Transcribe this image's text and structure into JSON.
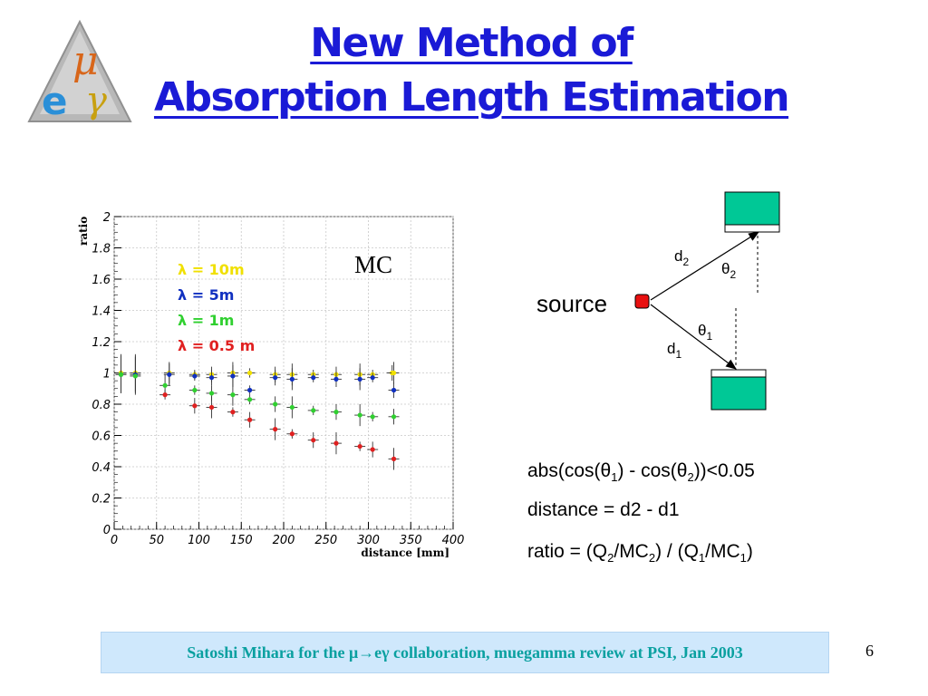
{
  "title": {
    "line1": "New Method of",
    "line2": "Absorption Length Estimation"
  },
  "logo": {
    "icon": "mu-e-gamma-triangle-logo",
    "symbols": [
      "μ",
      "e",
      "γ"
    ]
  },
  "chart_data": {
    "type": "scatter",
    "xlabel": "distance [mm]",
    "ylabel": "ratio",
    "xlim": [
      0,
      400
    ],
    "ylim": [
      0,
      2
    ],
    "xticks": [
      "0",
      "50",
      "100",
      "150",
      "200",
      "250",
      "300",
      "350",
      "400"
    ],
    "yticks": [
      "0",
      "0.2",
      "0.4",
      "0.6",
      "0.8",
      "1",
      "1.2",
      "1.4",
      "1.6",
      "1.8",
      "2"
    ],
    "grid": true,
    "annotation": "MC",
    "legend_position": "top-left",
    "series": [
      {
        "name": "λ = 10m",
        "color": "#f0e000",
        "x": [
          8,
          25,
          65,
          95,
          115,
          140,
          160,
          190,
          210,
          235,
          262,
          290,
          305,
          328,
          330
        ],
        "y": [
          1.0,
          1.0,
          1.0,
          0.99,
          0.99,
          1.0,
          1.0,
          0.99,
          0.99,
          0.99,
          0.99,
          0.99,
          0.99,
          1.0,
          1.0
        ]
      },
      {
        "name": "λ = 5m",
        "color": "#1030c0",
        "x": [
          8,
          25,
          65,
          95,
          115,
          140,
          160,
          190,
          210,
          235,
          262,
          290,
          305,
          330
        ],
        "y": [
          0.99,
          0.99,
          0.99,
          0.98,
          0.97,
          0.98,
          0.89,
          0.97,
          0.96,
          0.97,
          0.96,
          0.96,
          0.97,
          0.89
        ]
      },
      {
        "name": "λ = 1m",
        "color": "#30d030",
        "x": [
          8,
          25,
          60,
          95,
          115,
          140,
          160,
          190,
          210,
          235,
          262,
          290,
          305,
          330
        ],
        "y": [
          0.99,
          0.98,
          0.92,
          0.89,
          0.87,
          0.86,
          0.83,
          0.8,
          0.78,
          0.76,
          0.75,
          0.73,
          0.72,
          0.72
        ]
      },
      {
        "name": "λ = 0.5 m",
        "color": "#e02020",
        "x": [
          60,
          95,
          115,
          140,
          160,
          190,
          210,
          235,
          262,
          290,
          305,
          330
        ],
        "y": [
          0.86,
          0.79,
          0.78,
          0.75,
          0.7,
          0.64,
          0.61,
          0.57,
          0.55,
          0.53,
          0.51,
          0.45
        ]
      }
    ]
  },
  "diagram": {
    "source_label": "source",
    "d2": "d",
    "d2_sub": "2",
    "theta2": "θ",
    "theta2_sub": "2",
    "theta1": "θ",
    "theta1_sub": "1",
    "d1": "d",
    "d1_sub": "1",
    "detector_color": "#00c896",
    "source_color": "#e81010"
  },
  "formulas": {
    "f1_a": "abs(cos(θ",
    "f1_s1": "1",
    "f1_b": ") - cos(θ",
    "f1_s2": "2",
    "f1_c": "))<0.05",
    "f2": "distance = d2 - d1",
    "f3_a": "ratio = (Q",
    "f3_s1": "2",
    "f3_b": "/MC",
    "f3_s2": "2",
    "f3_c": ") / (Q",
    "f3_s3": "1",
    "f3_d": "/MC",
    "f3_s4": "1",
    "f3_e": ")"
  },
  "footer": {
    "text": "Satoshi Mihara for the μ→eγ collaboration, muegamma review at PSI, Jan 2003"
  },
  "page_number": "6"
}
